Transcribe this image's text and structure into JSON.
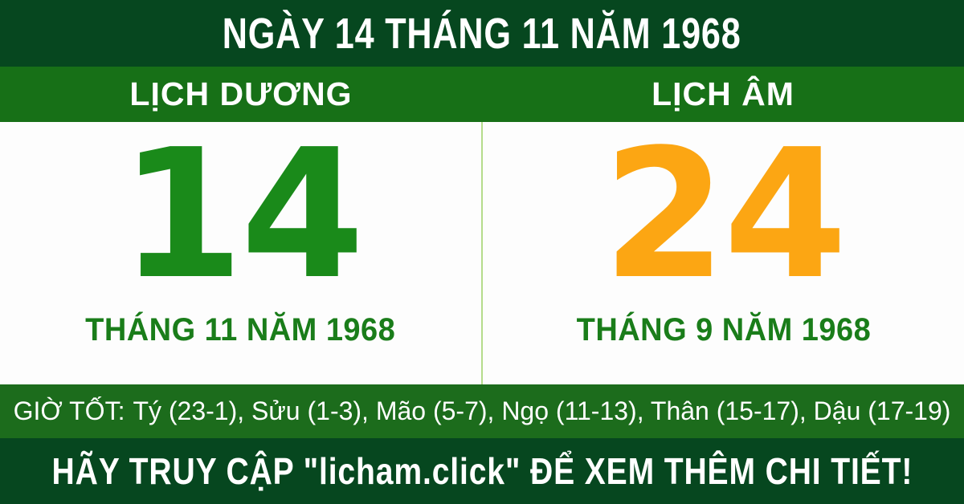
{
  "header": {
    "title": "NGÀY 14 THÁNG 11 NĂM 1968"
  },
  "calendars": {
    "solar": {
      "label": "LỊCH DƯƠNG",
      "day": "14",
      "month_year": "THÁNG 11 NĂM 1968"
    },
    "lunar": {
      "label": "LỊCH ÂM",
      "day": "24",
      "month_year": "THÁNG 9 NĂM 1968"
    }
  },
  "good_hours": {
    "label": "GIỜ TỐT:",
    "hours": "Tý (23-1), Sửu (1-3), Mão (5-7), Ngọ (11-13), Thân (15-17), Dậu (17-19)"
  },
  "footer": {
    "text": "HÃY TRUY CẬP \"licham.click\" ĐỂ XEM THÊM CHI TIẾT!"
  },
  "colors": {
    "dark_green": "#06471F",
    "band_green": "#177017",
    "hours_green": "#1C6C1C",
    "solar_day_green": "#1A8A1A",
    "subtitle_green": "#1A7D1A",
    "lunar_day_orange": "#FCA613",
    "panel_white": "#FDFDFD",
    "divider_light_green": "#B5DC8C"
  }
}
